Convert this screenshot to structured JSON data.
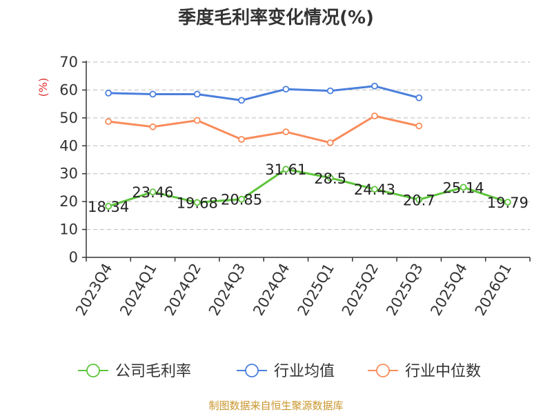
{
  "chart_data": {
    "type": "line",
    "title": "季度毛利率变化情况(%)",
    "ylabel": "(%)",
    "xlabel": "",
    "ylim": [
      0,
      70
    ],
    "yticks": [
      0,
      10,
      20,
      30,
      40,
      50,
      60,
      70
    ],
    "grid": true,
    "legend_position": "bottom",
    "categories": [
      "2023Q4",
      "2024Q1",
      "2024Q2",
      "2024Q3",
      "2024Q4",
      "2025Q1",
      "2025Q2",
      "2025Q3",
      "2025Q4",
      "2026Q1"
    ],
    "series": [
      {
        "name": "公司毛利率",
        "color": "#5cc43a",
        "show_labels": true,
        "values": [
          18.34,
          23.46,
          19.68,
          20.85,
          31.61,
          28.5,
          24.43,
          20.7,
          25.14,
          19.79
        ]
      },
      {
        "name": "行业均值",
        "color": "#4a7fdc",
        "show_labels": false,
        "values": [
          58.9,
          58.5,
          58.5,
          56.3,
          60.3,
          59.7,
          61.4,
          57.2,
          null,
          null
        ]
      },
      {
        "name": "行业中位数",
        "color": "#f98b5a",
        "show_labels": false,
        "values": [
          48.7,
          46.8,
          49.1,
          42.3,
          45.0,
          41.1,
          50.7,
          47.1,
          null,
          null
        ]
      }
    ]
  },
  "footer": {
    "source": "制图数据来自恒生聚源数据库"
  },
  "colors": {
    "title": "#333333",
    "ylabel": "#e03030",
    "axis": "#333333",
    "grid": "#bbbbbb",
    "footer": "#c8962e"
  }
}
